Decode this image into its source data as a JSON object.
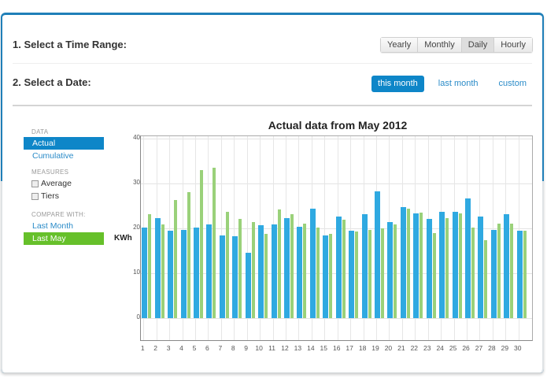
{
  "sections": {
    "time_range_title": "1. Select a Time Range:",
    "date_title": "2. Select a Date:"
  },
  "time_range": {
    "options": [
      "Yearly",
      "Monthly",
      "Daily",
      "Hourly"
    ],
    "selected": "Daily"
  },
  "date": {
    "options": [
      "this month",
      "last month",
      "custom"
    ],
    "selected": "this month"
  },
  "sidebar": {
    "data_caption": "DATA",
    "data_items": [
      "Actual",
      "Cumulative"
    ],
    "data_selected": "Actual",
    "measures_caption": "MEASURES",
    "measures": [
      {
        "label": "Average",
        "checked": false
      },
      {
        "label": "Tiers",
        "checked": false
      }
    ],
    "compare_caption": "COMPARE WITH:",
    "compare_items": [
      "Last Month",
      "Last May"
    ],
    "compare_selected": "Last May"
  },
  "colors": {
    "accent": "#0e86c8",
    "actual_bar": "#2fa9e1",
    "compare_bar": "#9ad17a",
    "compare_selected": "#66c02a"
  },
  "chart_data": {
    "type": "bar",
    "title": "Actual data from May 2012",
    "xlabel": "",
    "ylabel": "KWh",
    "ylim": [
      -10,
      40
    ],
    "yticks": [
      0,
      10,
      20,
      30,
      40
    ],
    "grid": true,
    "legend": "none",
    "categories": [
      "1",
      "2",
      "3",
      "4",
      "5",
      "6",
      "7",
      "8",
      "9",
      "10",
      "11",
      "12",
      "13",
      "14",
      "15",
      "16",
      "17",
      "18",
      "19",
      "20",
      "21",
      "22",
      "23",
      "24",
      "25",
      "26",
      "27",
      "28",
      "29",
      "30"
    ],
    "series": [
      {
        "name": "Actual (May 2012)",
        "color": "#2fa9e1",
        "values": [
          20.2,
          22.3,
          19.5,
          19.6,
          20.1,
          20.9,
          18.4,
          18.2,
          14.6,
          20.7,
          20.9,
          22.3,
          20.3,
          24.4,
          18.4,
          22.6,
          19.5,
          23.1,
          28.2,
          21.4,
          24.7,
          23.3,
          22.1,
          23.7,
          23.7,
          26.7,
          22.6,
          19.6,
          23.1,
          19.5
        ]
      },
      {
        "name": "Last May",
        "color": "#9ad17a",
        "values": [
          23.2,
          20.9,
          26.3,
          28.1,
          33.0,
          33.5,
          23.7,
          22.1,
          21.4,
          18.8,
          24.2,
          23.2,
          21.1,
          20.2,
          18.8,
          21.9,
          19.3,
          19.7,
          20.0,
          20.9,
          24.4,
          23.5,
          19.0,
          22.3,
          23.3,
          20.2,
          17.4,
          21.1,
          21.1,
          19.5
        ]
      }
    ]
  }
}
